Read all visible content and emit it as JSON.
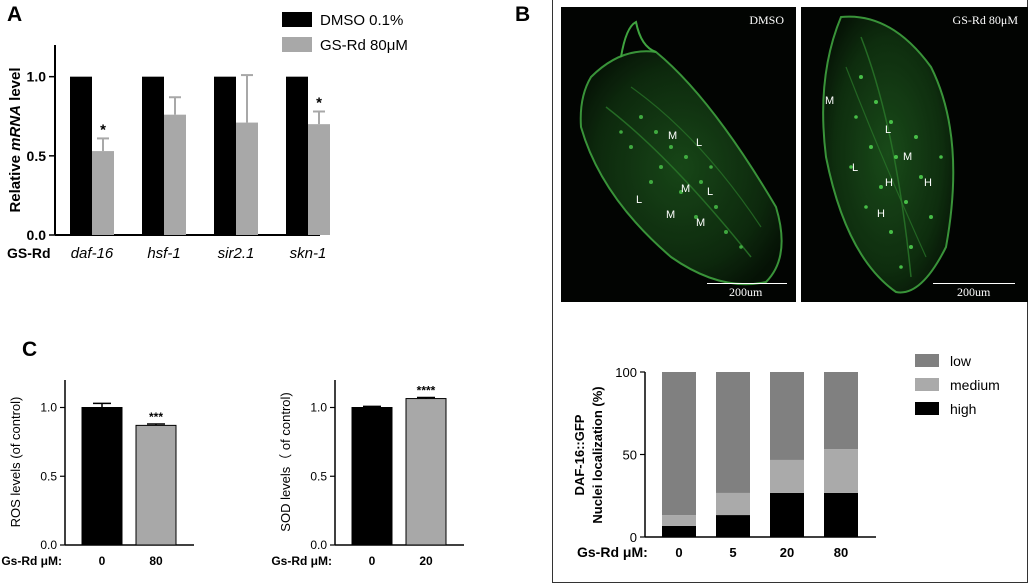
{
  "panels": {
    "a": "A",
    "b": "B",
    "c": "C"
  },
  "chart_data": [
    {
      "type": "bar",
      "panel": "A",
      "categories": [
        "daf-16",
        "hsf-1",
        "sir2.1",
        "skn-1"
      ],
      "series": [
        {
          "name": "DMSO 0.1%",
          "color": "#000000",
          "values": [
            1.0,
            1.0,
            1.0,
            1.0
          ],
          "errors": [
            0,
            0,
            0,
            0
          ]
        },
        {
          "name": "GS-Rd 80μM",
          "color": "#a8a8a8",
          "values": [
            0.53,
            0.76,
            0.71,
            0.7
          ],
          "errors": [
            0.08,
            0.11,
            0.3,
            0.08
          ]
        }
      ],
      "significance": [
        "*",
        "",
        "",
        "*"
      ],
      "ylabel_prefix": "Relative ",
      "ylabel_italic": "mRNA",
      "ylabel_suffix": " level",
      "xaxis_row_label": "GS-Rd",
      "ylim": [
        0,
        1.2
      ],
      "yticks": [
        "0.0",
        "0.5",
        "1.0"
      ],
      "ytick_values": [
        0,
        0.5,
        1.0
      ],
      "legend_position": "top-right"
    },
    {
      "type": "bar",
      "panel": "C",
      "categories": [
        "0",
        "80"
      ],
      "values": [
        1.0,
        0.87
      ],
      "errors": [
        0.03,
        0.01
      ],
      "colors": [
        "#000000",
        "#a8a8a8"
      ],
      "significance": [
        "",
        "***"
      ],
      "ylabel": "ROS levels (of control)",
      "xaxis_row_label": "Gs-Rd  μM:",
      "ylim": [
        0,
        1.2
      ],
      "yticks": [
        "0.0",
        "0.5",
        "1.0"
      ],
      "ytick_values": [
        0,
        0.5,
        1.0
      ]
    },
    {
      "type": "bar",
      "panel": "C",
      "categories": [
        "0",
        "20"
      ],
      "values": [
        1.0,
        1.065
      ],
      "errors": [
        0.008,
        0.008
      ],
      "colors": [
        "#000000",
        "#a8a8a8"
      ],
      "significance": [
        "",
        "****"
      ],
      "ylabel": "SOD levels（ of control)",
      "xaxis_row_label": "Gs-Rd  μM:",
      "ylim": [
        0,
        1.2
      ],
      "yticks": [
        "0.0",
        "0.5",
        "1.0"
      ],
      "ytick_values": [
        0,
        0.5,
        1.0
      ]
    },
    {
      "type": "bar",
      "stacked": true,
      "panel": "B",
      "categories": [
        "0",
        "5",
        "20",
        "80"
      ],
      "series": [
        {
          "name": "high",
          "color": "#000000",
          "values": [
            6.7,
            13.3,
            26.7,
            26.7
          ]
        },
        {
          "name": "medium",
          "color": "#aaaaaa",
          "values": [
            6.6,
            13.4,
            20.0,
            26.6
          ]
        },
        {
          "name": "low",
          "color": "#808080",
          "values": [
            86.7,
            73.3,
            53.3,
            46.7
          ]
        }
      ],
      "ylabel_line1": "DAF-16::GFP",
      "ylabel_line2": "Nuclei localization (%)",
      "xaxis_row_label": "Gs-Rd μM:",
      "ylim": [
        0,
        100
      ],
      "yticks": [
        "0",
        "50",
        "100"
      ],
      "ytick_values": [
        0,
        50,
        100
      ],
      "legend_order": [
        "low",
        "medium",
        "high"
      ],
      "legend_position": "top-right"
    }
  ],
  "micrographs": [
    {
      "label": "DMSO",
      "scale_bar": "200um",
      "markers": [
        "M",
        "L",
        "M",
        "L",
        "L",
        "M",
        "M"
      ]
    },
    {
      "label": "GS-Rd 80μM",
      "scale_bar": "200um",
      "markers": [
        "M",
        "L",
        "L",
        "M",
        "H",
        "H",
        "H"
      ]
    }
  ]
}
